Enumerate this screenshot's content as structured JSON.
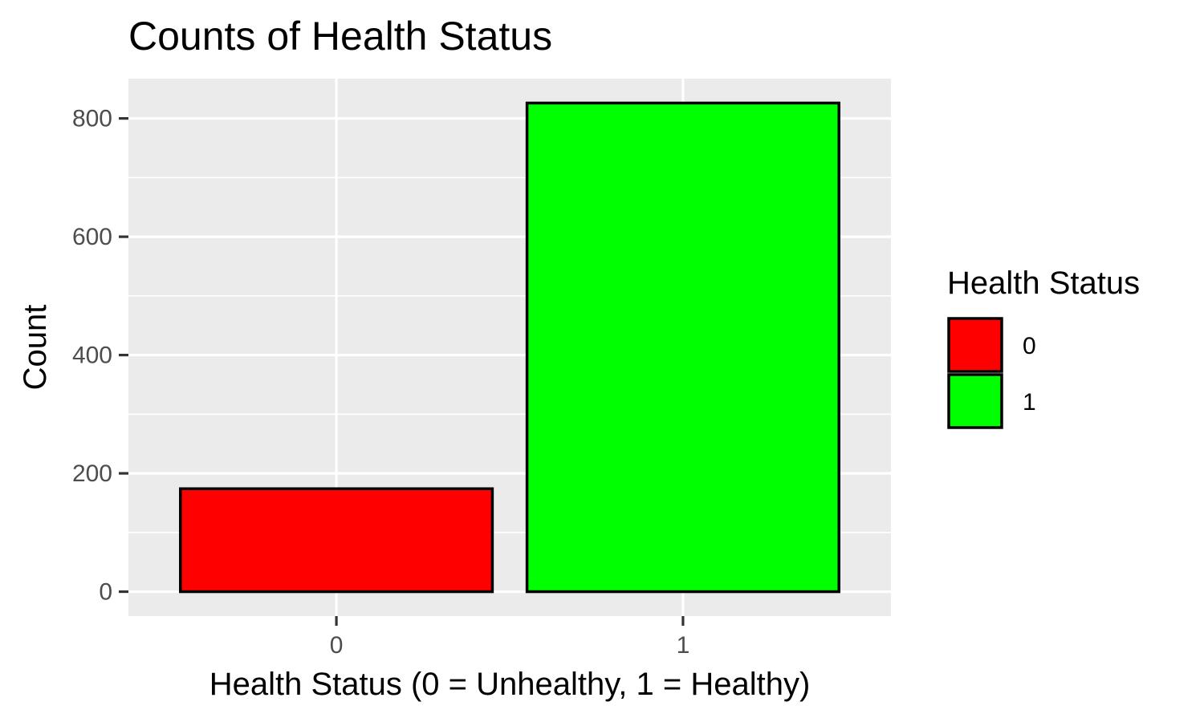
{
  "chart_data": {
    "type": "bar",
    "title": "Counts of Health Status",
    "xlabel": "Health Status (0 = Unhealthy, 1 = Healthy)",
    "ylabel": "Count",
    "categories": [
      "0",
      "1"
    ],
    "values": [
      174,
      826
    ],
    "colors": [
      "#FF0000",
      "#00FF00"
    ],
    "bar_outline_color": "#000000",
    "panel_background": "#EBEBEB",
    "gridline_color": "#FFFFFF",
    "ylim": [
      -41.3,
      867.3
    ],
    "y_ticks": [
      0,
      200,
      400,
      600,
      800
    ],
    "y_tick_labels": [
      "0",
      "200",
      "400",
      "600",
      "800"
    ],
    "grid": true,
    "legend": {
      "title": "Health Status",
      "position": "right",
      "items": [
        {
          "label": "0",
          "color": "#FF0000"
        },
        {
          "label": "1",
          "color": "#00FF00"
        }
      ]
    }
  }
}
